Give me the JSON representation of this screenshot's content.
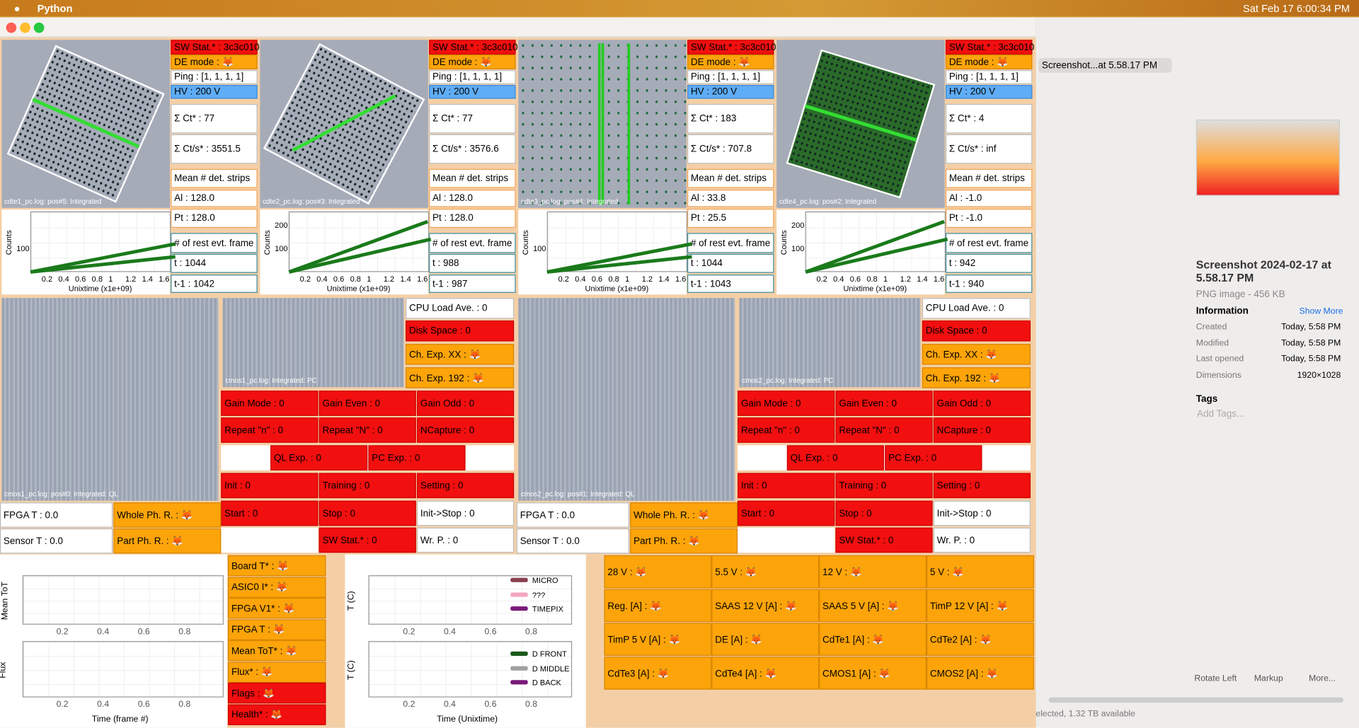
{
  "menubar": {
    "app": "Python",
    "clock": "Sat Feb 17  6:00:34 PM"
  },
  "cdte": [
    {
      "image": "cdte1_pc.log: pos#5: Integrated",
      "sw": "SW Stat.* : 3c3c010",
      "de": "DE mode : 🦊",
      "ping": "Ping : [1, 1, 1, 1]",
      "hv": "HV : 200 V",
      "ct": "Σ Ct* : 77",
      "cts": "Σ Ct/s* : 3551.5",
      "mean": "Mean # det. strips",
      "al": "Al : 128.0",
      "pt": "Pt : 128.0",
      "rest": "# of rest evt. frame",
      "t": "t : 1044",
      "t1": "t-1 : 1042",
      "plot": {
        "ylabel": "Counts",
        "yticks": [
          100
        ],
        "xticks": [
          "0.2",
          "0.4",
          "0.6",
          "0.8",
          "1",
          "1.2",
          "1.4",
          "1.6"
        ],
        "xlabel": "Unixtime (x1e+09)"
      }
    },
    {
      "image": "cdte2_pc.log: pos#3: Integrated",
      "sw": "SW Stat.* : 3c3c010",
      "de": "DE mode : 🦊",
      "ping": "Ping : [1, 1, 1, 1]",
      "hv": "HV : 200 V",
      "ct": "Σ Ct* : 77",
      "cts": "Σ Ct/s* : 3576.6",
      "mean": "Mean # det. strips",
      "al": "Al : 128.0",
      "pt": "Pt : 128.0",
      "rest": "# of rest evt. frame",
      "t": "t : 988",
      "t1": "t-1 : 987",
      "plot": {
        "ylabel": "Counts",
        "yticks": [
          100,
          200
        ],
        "xticks": [
          "0.2",
          "0.4",
          "0.6",
          "0.8",
          "1",
          "1.2",
          "1.4",
          "1.6"
        ],
        "xlabel": "Unixtime (x1e+09)"
      }
    },
    {
      "image": "cdte3_pc.log: pos#4: Integrated",
      "sw": "SW Stat.* : 3c3c010",
      "de": "DE mode : 🦊",
      "ping": "Ping : [1, 1, 1, 1]",
      "hv": "HV : 200 V",
      "ct": "Σ Ct* : 183",
      "cts": "Σ Ct/s* : 707.8",
      "mean": "Mean # det. strips",
      "al": "Al : 33.8",
      "pt": "Pt : 25.5",
      "rest": "# of rest evt. frame",
      "t": "t : 1044",
      "t1": "t-1 : 1043",
      "plot": {
        "ylabel": "Counts",
        "yticks": [
          100
        ],
        "xticks": [
          "0.2",
          "0.4",
          "0.6",
          "0.8",
          "1",
          "1.2",
          "1.4",
          "1.6"
        ],
        "xlabel": "Unixtime (x1e+09)"
      }
    },
    {
      "image": "cdte4_pc.log: pos#2: Integrated",
      "sw": "SW Stat.* : 3c3c010",
      "de": "DE mode : 🦊",
      "ping": "Ping : [1, 1, 1, 1]",
      "hv": "HV : 200 V",
      "ct": "Σ Ct* : 4",
      "cts": "Σ Ct/s* : inf",
      "mean": "Mean # det. strips",
      "al": "Al : -1.0",
      "pt": "Pt : -1.0",
      "rest": "# of rest evt. frame",
      "t": "t : 942",
      "t1": "t-1 : 940",
      "plot": {
        "ylabel": "Counts",
        "yticks": [
          100,
          200
        ],
        "xticks": [
          "0.2",
          "0.4",
          "0.6",
          "0.8",
          "1",
          "1.2",
          "1.4",
          "1.6"
        ],
        "xlabel": "Unixtime (x1e+09)"
      }
    }
  ],
  "cmos": [
    {
      "image_ql": "cmos1_pc.log: pos#0: Integrated: QL",
      "image_pc": "cmos1_pc.log: Integrated: PC",
      "side": [
        "CPU Load Ave. : 0",
        "Disk Space : 0",
        "Ch. Exp. XX : 🦊",
        "Ch. Exp. 192 : 🦊"
      ],
      "grid": [
        [
          "Gain Mode : 0",
          "Gain Even : 0",
          "Gain Odd : 0"
        ],
        [
          "Repeat \"n\" : 0",
          "Repeat \"N\" : 0",
          "NCapture : 0"
        ],
        [
          "QL Exp. : 0",
          "PC Exp. : 0"
        ],
        [
          "Init : 0",
          "Training : 0",
          "Setting : 0"
        ],
        [
          "Start : 0",
          "Stop : 0",
          "Init->Stop : 0"
        ],
        [
          "SW Stat.* : 0",
          "Wr. P. : 0"
        ]
      ],
      "temps": [
        [
          "FPGA T : 0.0",
          "Whole Ph. R. : 🦊"
        ],
        [
          "Sensor T : 0.0",
          "Part Ph. R. : 🦊"
        ]
      ]
    },
    {
      "image_ql": "cmos2_pc.log: pos#1: Integrated: QL",
      "image_pc": "cmos2_pc.log: Integrated: PC",
      "side": [
        "CPU Load Ave. : 0",
        "Disk Space : 0",
        "Ch. Exp. XX : 🦊",
        "Ch. Exp. 192 : 🦊"
      ],
      "grid": [
        [
          "Gain Mode : 0",
          "Gain Even : 0",
          "Gain Odd : 0"
        ],
        [
          "Repeat \"n\" : 0",
          "Repeat \"N\" : 0",
          "NCapture : 0"
        ],
        [
          "QL Exp. : 0",
          "PC Exp. : 0"
        ],
        [
          "Init : 0",
          "Training : 0",
          "Setting : 0"
        ],
        [
          "Start : 0",
          "Stop : 0",
          "Init->Stop : 0"
        ],
        [
          "SW Stat.* : 0",
          "Wr. P. : 0"
        ]
      ],
      "temps": [
        [
          "FPGA T : 0.0",
          "Whole Ph. R. : 🦊"
        ],
        [
          "Sensor T : 0.0",
          "Part Ph. R. : 🦊"
        ]
      ]
    }
  ],
  "timepix": {
    "plots": [
      {
        "ylabel": "Mean ToT"
      },
      {
        "ylabel": "Flux"
      }
    ],
    "xticks": [
      "0.2",
      "0.4",
      "0.6",
      "0.8"
    ],
    "xlabel": "Time (frame #)",
    "status": [
      "Board T* : 🦊",
      "ASIC0 I* : 🦊",
      "FPGA V1* : 🦊",
      "FPGA T : 🦊",
      "Mean ToT* : 🦊",
      "Flux* : 🦊",
      "Flags : 🦊",
      "Health* : 🦊"
    ]
  },
  "temperature": {
    "plots": [
      {
        "ylabel": "T (C)",
        "legend": [
          {
            "name": "MICRO",
            "color": "#8a4050"
          },
          {
            "name": "???",
            "color": "#f4a6c0"
          },
          {
            "name": "TIMEPIX",
            "color": "#7a1a7a"
          }
        ]
      },
      {
        "ylabel": "T (C)",
        "legend": [
          {
            "name": "D FRONT",
            "color": "#1a5a1a"
          },
          {
            "name": "D MIDDLE",
            "color": "#a0a0a0"
          },
          {
            "name": "D BACK",
            "color": "#7a1a7a"
          }
        ]
      }
    ],
    "xticks": [
      "0.2",
      "0.4",
      "0.6",
      "0.8"
    ],
    "xlabel": "Time (Unixtime)"
  },
  "power": [
    "28 V : 🦊",
    "5.5 V : 🦊",
    "12 V : 🦊",
    "5 V : 🦊",
    "Reg. [A] : 🦊",
    "SAAS 12 V [A] : 🦊",
    "SAAS 5 V [A] : 🦊",
    "TimP 12 V [A] : 🦊",
    "TimP 5 V [A] : 🦊",
    "DE [A] : 🦊",
    "CdTe1 [A] : 🦊",
    "CdTe2 [A] : 🦊",
    "CdTe3 [A] : 🦊",
    "CdTe4 [A] : 🦊",
    "CMOS1 [A] : 🦊",
    "CMOS2 [A] : 🦊"
  ],
  "finder": {
    "list_item": "Screenshot...at 5.58.17 PM",
    "title": "Screenshot 2024-02-17 at 5.58.17 PM",
    "subtitle": "PNG image - 456 KB",
    "info": "Information",
    "show_more": "Show More",
    "fields": [
      [
        "Created",
        "Today, 5:58 PM"
      ],
      [
        "Modified",
        "Today, 5:58 PM"
      ],
      [
        "Last opened",
        "Today, 5:58 PM"
      ],
      [
        "Dimensions",
        "1920×1028"
      ]
    ],
    "tags": "Tags",
    "add_tags": "Add Tags...",
    "actions": [
      "Rotate Left",
      "Markup",
      "More..."
    ],
    "status": "elected, 1.32 TB available"
  }
}
